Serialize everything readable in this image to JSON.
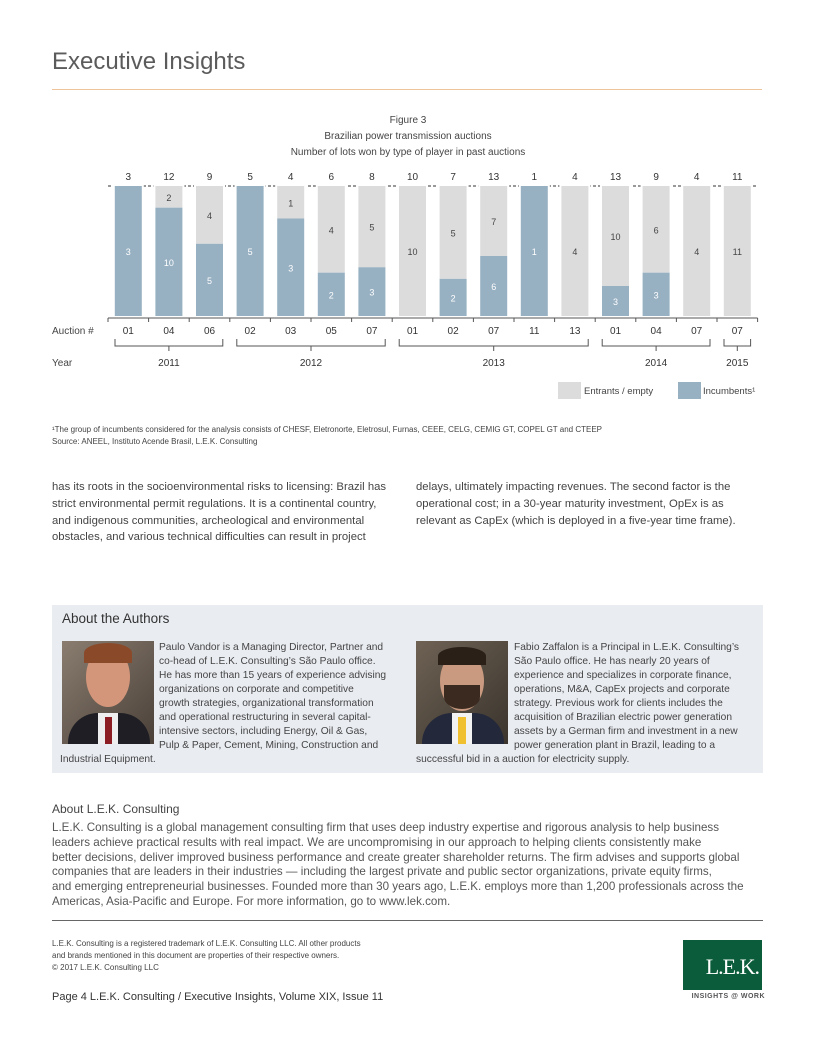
{
  "header": {
    "title": "Executive Insights"
  },
  "figure": {
    "label": "Figure 3",
    "title": "Brazilian power transmission auctions",
    "subtitle": "Number of lots won by type of player in past auctions"
  },
  "chart_data": {
    "type": "bar",
    "stacked": true,
    "normalized": true,
    "title": "Brazilian power transmission auctions",
    "subtitle": "Number of lots won by type of player in past auctions",
    "row_labels": {
      "auction": "Auction #",
      "year": "Year"
    },
    "categories": [
      "01",
      "04",
      "06",
      "02",
      "03",
      "05",
      "07",
      "01",
      "02",
      "07",
      "11",
      "13",
      "01",
      "04",
      "07",
      "07"
    ],
    "years": [
      {
        "label": "2011",
        "span": 3
      },
      {
        "label": "2012",
        "span": 4
      },
      {
        "label": "2013",
        "span": 5
      },
      {
        "label": "2014",
        "span": 3
      },
      {
        "label": "2015",
        "span": 1
      }
    ],
    "totals": [
      3,
      12,
      9,
      5,
      4,
      6,
      8,
      10,
      7,
      13,
      1,
      4,
      13,
      9,
      4,
      11
    ],
    "series": [
      {
        "name": "Incumbents¹",
        "color": "#97b0c2",
        "values": [
          3,
          10,
          5,
          5,
          3,
          2,
          3,
          0,
          2,
          6,
          1,
          0,
          3,
          3,
          0,
          0
        ]
      },
      {
        "name": "Entrants / empty",
        "color": "#dcdcdc",
        "values": [
          0,
          2,
          4,
          0,
          1,
          4,
          5,
          10,
          5,
          7,
          0,
          4,
          10,
          6,
          4,
          11
        ]
      }
    ],
    "legend": "bottom-right"
  },
  "notes": {
    "footnote": "¹The group of incumbents considered for the analysis consists of CHESF, Eletronorte, Eletrosul, Furnas, CEEE, CELG, CEMIG GT, COPEL GT and CTEEP",
    "source": "Source: ANEEL, Instituto Acende Brasil, L.E.K. Consulting"
  },
  "body": {
    "left": [
      "has its roots in the socioenvironmental risks to licensing: Brazil has",
      "strict environmental permit regulations. It is a continental country,",
      "and indigenous communities, archeological and environmental",
      "obstacles, and various technical difficulties can result in project"
    ],
    "right": [
      "delays, ultimately impacting revenues. The second factor is the",
      "operational cost; in a 30-year maturity investment, OpEx is as",
      "relevant as CapEx (which is deployed in a five-year time frame)."
    ]
  },
  "authors": {
    "heading": "About the Authors",
    "a1": [
      "Paulo Vandor is a Managing Director, Partner and",
      "co-head of L.E.K. Consulting’s São Paulo office.",
      "He has more than 15 years of experience advising",
      "organizations on corporate and competitive",
      "growth strategies, organizational transformation",
      "and operational restructuring in several capital-",
      "intensive sectors, including Energy, Oil & Gas,",
      "Pulp & Paper, Cement, Mining, Construction and",
      "Industrial Equipment."
    ],
    "a2": [
      "Fabio Zaffalon is a Principal in L.E.K. Consulting’s",
      "São Paulo office. He has nearly 20 years of",
      "experience and specializes in corporate finance,",
      "operations, M&A, CapEx projects and corporate",
      "strategy. Previous work for clients includes the",
      "acquisition of Brazilian electric power generation",
      "assets by a German firm and investment in a new",
      "power generation plant in Brazil, leading to a",
      "successful bid in a auction for electricity supply."
    ]
  },
  "about": {
    "heading": "About L.E.K. Consulting",
    "lines": [
      "L.E.K. Consulting is a global management consulting firm that uses deep industry expertise and rigorous analysis to help business",
      "leaders achieve practical results with real impact. We are uncompromising in our approach to helping clients consistently make",
      "better decisions, deliver improved business performance and create greater shareholder returns. The firm advises and supports global",
      "companies that are leaders in their industries — including the largest private and public sector organizations, private equity firms,",
      "and emerging entrepreneurial businesses. Founded more than 30 years ago, L.E.K. employs more than 1,200 professionals across the",
      "Americas, Asia-Pacific and Europe. For more information, go to www.lek.com."
    ]
  },
  "footer": {
    "legal": [
      "L.E.K. Consulting is a registered trademark of L.E.K. Consulting LLC. All other products",
      "and brands mentioned in this document are properties of their respective owners.",
      "© 2017 L.E.K. Consulting LLC"
    ],
    "page": "Page 4  L.E.K. Consulting / Executive Insights, Volume XIX, Issue 11",
    "logo": "L.E.K.",
    "tagline": "INSIGHTS @ WORK"
  }
}
